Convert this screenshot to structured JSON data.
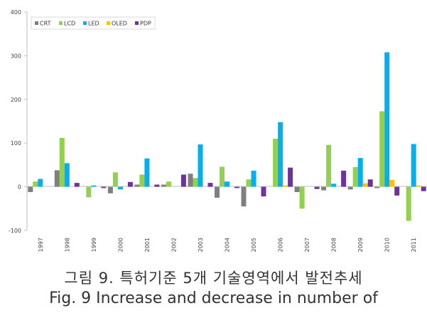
{
  "chart_data": {
    "type": "bar",
    "categories": [
      "1997",
      "1998",
      "1999",
      "2000",
      "2001",
      "2002",
      "2003",
      "2004",
      "2005",
      "2006",
      "2007",
      "2008",
      "2009",
      "2010",
      "2011"
    ],
    "ylim": [
      -100,
      400
    ],
    "yticks": [
      "400",
      "300",
      "200",
      "100",
      "0",
      "-100"
    ],
    "ytick_values": [
      400,
      300,
      200,
      100,
      0,
      -100
    ],
    "grid": false,
    "legend_placement": "top-left",
    "series": [
      {
        "name": "CRT",
        "color": "#7f7f7f",
        "values": [
          -12,
          38,
          0,
          -15,
          5,
          5,
          30,
          -25,
          -45,
          0,
          -12,
          -8,
          -6,
          -3,
          0
        ]
      },
      {
        "name": "LCD",
        "color": "#92d050",
        "values": [
          12,
          112,
          -24,
          33,
          28,
          12,
          20,
          46,
          17,
          110,
          -50,
          96,
          45,
          173,
          -78
        ]
      },
      {
        "name": "LED",
        "color": "#00b0f0",
        "values": [
          18,
          54,
          3,
          -6,
          65,
          0,
          97,
          12,
          37,
          148,
          0,
          7,
          66,
          308,
          98
        ]
      },
      {
        "name": "OLED",
        "color": "#ffc000",
        "values": [
          0,
          0,
          0,
          0,
          0,
          0,
          0,
          0,
          0,
          3,
          0,
          0,
          8,
          16,
          3
        ]
      },
      {
        "name": "PDP",
        "color": "#7030a0",
        "values": [
          0,
          9,
          -3,
          11,
          5,
          28,
          9,
          -3,
          -22,
          44,
          -5,
          37,
          17,
          -20,
          -10
        ]
      }
    ]
  },
  "caption": {
    "korean": "그림 9. 특허기준 5개 기술영역에서 발전추세",
    "english": "Fig. 9 Increase and decrease in number of"
  }
}
